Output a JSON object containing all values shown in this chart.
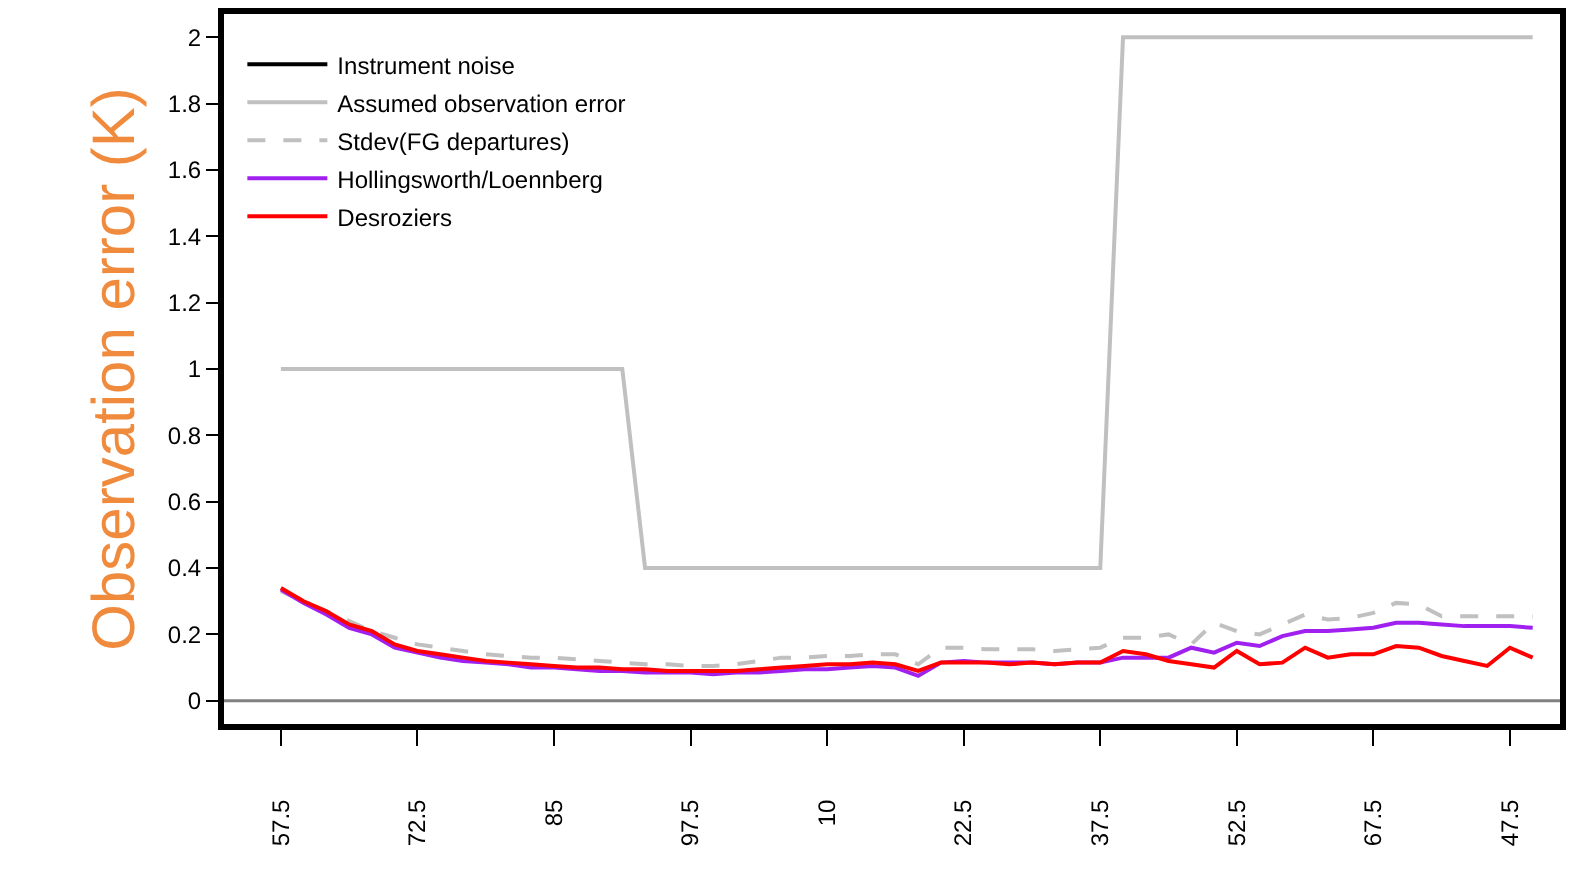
{
  "chart_data": {
    "type": "line",
    "ylabel": "Observation error (K)",
    "categories": [
      "57.5",
      null,
      null,
      null,
      null,
      null,
      "72.5",
      null,
      null,
      null,
      null,
      null,
      "85",
      null,
      null,
      null,
      null,
      null,
      "97.5",
      null,
      null,
      null,
      null,
      null,
      "10",
      null,
      null,
      null,
      null,
      null,
      "22.5",
      null,
      null,
      null,
      null,
      null,
      "37.5",
      null,
      null,
      null,
      null,
      null,
      "52.5",
      null,
      null,
      null,
      null,
      null,
      "67.5",
      null,
      null,
      null,
      null,
      null,
      "47.5",
      null
    ],
    "series": [
      {
        "name": "Instrument noise",
        "color": "#000000",
        "values": [
          null,
          null,
          null,
          null,
          null,
          null,
          null,
          null,
          null,
          null,
          null,
          null,
          null,
          null,
          null,
          null,
          null,
          null,
          null,
          null,
          null,
          null,
          null,
          null,
          null,
          null,
          null,
          null,
          null,
          null,
          null,
          null,
          null,
          null,
          null,
          null,
          null,
          null,
          null,
          null,
          null,
          null,
          null,
          null,
          null,
          null,
          null,
          null,
          null,
          null,
          null,
          null,
          null,
          null,
          null,
          null
        ]
      },
      {
        "name": "Assumed observation error",
        "color": "#c0c0c0",
        "values": [
          1,
          1,
          1,
          1,
          1,
          1,
          1,
          1,
          1,
          1,
          1,
          1,
          1,
          1,
          1,
          1,
          0.4,
          0.4,
          0.4,
          0.4,
          0.4,
          0.4,
          0.4,
          0.4,
          0.4,
          0.4,
          0.4,
          0.4,
          0.4,
          0.4,
          0.4,
          0.4,
          0.4,
          0.4,
          0.4,
          0.4,
          0.4,
          2,
          2,
          2,
          2,
          2,
          2,
          2,
          2,
          2,
          2,
          2,
          2,
          2,
          2,
          2,
          2,
          2,
          2,
          2
        ]
      },
      {
        "name": "Stdev(FG departures)",
        "color": "#c0c0c0",
        "line_style": "dashed",
        "values": [
          0.33,
          0.3,
          0.27,
          0.24,
          0.21,
          0.19,
          0.17,
          0.16,
          0.15,
          0.14,
          0.135,
          0.13,
          0.13,
          0.125,
          0.12,
          0.115,
          0.11,
          0.11,
          0.105,
          0.105,
          0.11,
          0.12,
          0.13,
          0.13,
          0.135,
          0.135,
          0.14,
          0.14,
          0.11,
          0.16,
          0.16,
          0.155,
          0.155,
          0.155,
          0.15,
          0.155,
          0.16,
          0.19,
          0.19,
          0.2,
          0.17,
          0.235,
          0.21,
          0.2,
          0.23,
          0.26,
          0.245,
          0.25,
          0.265,
          0.295,
          0.29,
          0.255,
          0.255,
          0.255,
          0.255,
          0.255
        ]
      },
      {
        "name": "Hollingsworth/Loennberg",
        "color": "#a020f0",
        "values": [
          0.335,
          0.295,
          0.26,
          0.22,
          0.2,
          0.16,
          0.145,
          0.13,
          0.12,
          0.115,
          0.11,
          0.1,
          0.1,
          0.095,
          0.09,
          0.09,
          0.085,
          0.085,
          0.085,
          0.08,
          0.085,
          0.085,
          0.09,
          0.095,
          0.095,
          0.1,
          0.105,
          0.1,
          0.075,
          0.115,
          0.12,
          0.115,
          0.115,
          0.115,
          0.11,
          0.115,
          0.115,
          0.13,
          0.13,
          0.13,
          0.16,
          0.145,
          0.175,
          0.165,
          0.195,
          0.21,
          0.21,
          0.215,
          0.22,
          0.235,
          0.235,
          0.23,
          0.225,
          0.225,
          0.225,
          0.22
        ]
      },
      {
        "name": "Desroziers",
        "color": "#ff0000",
        "values": [
          0.34,
          0.3,
          0.27,
          0.23,
          0.21,
          0.17,
          0.15,
          0.14,
          0.13,
          0.12,
          0.115,
          0.11,
          0.105,
          0.1,
          0.1,
          0.095,
          0.095,
          0.09,
          0.09,
          0.09,
          0.09,
          0.095,
          0.1,
          0.105,
          0.11,
          0.11,
          0.115,
          0.11,
          0.09,
          0.115,
          0.115,
          0.115,
          0.11,
          0.115,
          0.11,
          0.115,
          0.115,
          0.15,
          0.14,
          0.12,
          0.11,
          0.1,
          0.15,
          0.11,
          0.115,
          0.16,
          0.13,
          0.14,
          0.14,
          0.165,
          0.16,
          0.135,
          0.12,
          0.105,
          0.16,
          0.13
        ]
      }
    ],
    "ylim": [
      -0.07,
      2.07
    ],
    "yticks": [
      0,
      0.2,
      0.4,
      0.6,
      0.8,
      1,
      1.2,
      1.4,
      1.6,
      1.8,
      2
    ],
    "ref_lines": [
      {
        "axis": "y",
        "value": 0,
        "color": "#808080"
      }
    ],
    "grid": false,
    "legend": "top left",
    "marker": "none",
    "line_style": "solid"
  }
}
